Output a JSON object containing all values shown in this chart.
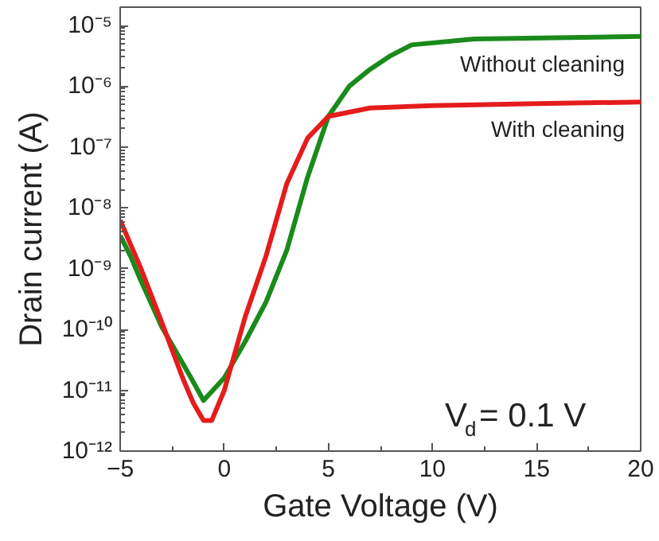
{
  "chart_data": {
    "type": "line",
    "xlabel": "Gate Voltage (V)",
    "ylabel": "Drain current (A)",
    "log": true,
    "grid": false,
    "line_style": "solid",
    "xlim": [
      -5,
      20
    ],
    "xticks": [
      -5,
      0,
      5,
      10,
      15,
      20
    ],
    "ylim": [
      1e-12,
      2e-05
    ],
    "yticks": [
      {
        "value": 1e-12,
        "label": "10⁻¹²"
      },
      {
        "value": 1e-11,
        "label": "10⁻¹¹"
      },
      {
        "value": 1e-10,
        "label": "10⁻¹⁰"
      },
      {
        "value": 1e-09,
        "label": "10⁻⁹"
      },
      {
        "value": 1e-08,
        "label": "10⁻⁸"
      },
      {
        "value": 1e-07,
        "label": "10⁻⁷"
      },
      {
        "value": 1e-06,
        "label": "10⁻⁶"
      },
      {
        "value": 1e-05,
        "label": "10⁻⁵"
      }
    ],
    "annotations": [
      "V$_{d}$= 0.1 V"
    ],
    "series": [
      {
        "name": "Without cleaning",
        "color": "#1a8a1a",
        "x": [
          -5,
          -4.5,
          -4,
          -3,
          -2,
          -1.5,
          -1,
          0,
          1,
          2,
          3,
          4,
          5,
          6,
          7,
          8,
          9,
          12,
          20
        ],
        "values": [
          3.5e-09,
          1.6e-09,
          6.3e-10,
          1.1e-10,
          2.8e-11,
          1.4e-11,
          6.8e-12,
          1.6e-11,
          6.3e-11,
          2.8e-10,
          2e-09,
          3.2e-08,
          3.2e-07,
          1e-06,
          1.9e-06,
          3.2e-06,
          4.8e-06,
          6e-06,
          6.6e-06
        ]
      },
      {
        "name": "With cleaning",
        "color": "#e51c1c",
        "x": [
          -5,
          -4.5,
          -4,
          -3,
          -2,
          -1.5,
          -1,
          -0.6,
          0,
          1,
          2,
          3,
          4,
          5,
          7,
          10,
          15,
          20
        ],
        "values": [
          6.3e-09,
          2.5e-09,
          1e-09,
          1.3e-10,
          1.6e-11,
          6.3e-12,
          3.2e-12,
          3.2e-12,
          1e-11,
          1.6e-10,
          1.6e-09,
          2.5e-08,
          1.4e-07,
          3.2e-07,
          4.4e-07,
          4.8e-07,
          5.2e-07,
          5.5e-07
        ]
      }
    ]
  }
}
